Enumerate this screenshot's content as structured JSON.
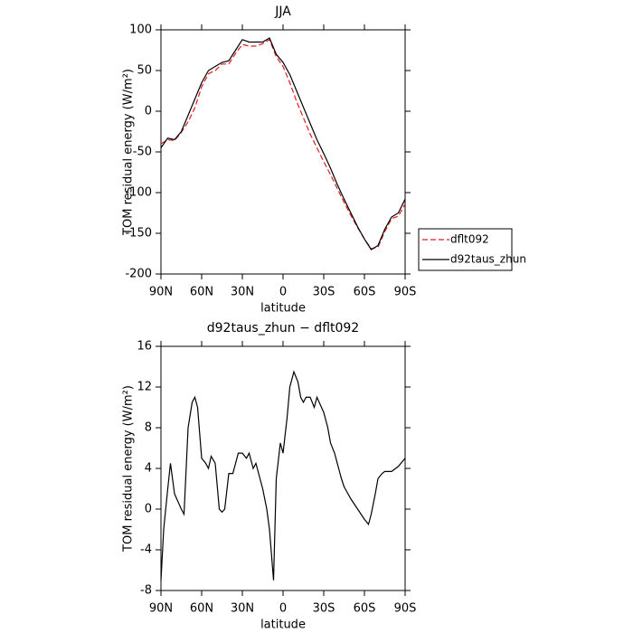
{
  "chart_data": [
    {
      "type": "line",
      "title": "JJA",
      "xlabel": "latitude",
      "ylabel": "TOM residual energy (W/m²)",
      "x": [
        90,
        85,
        80,
        75,
        70,
        65,
        60,
        55,
        50,
        45,
        40,
        35,
        30,
        25,
        20,
        15,
        10,
        5,
        0,
        -5,
        -10,
        -15,
        -20,
        -25,
        -30,
        -35,
        -40,
        -45,
        -50,
        -55,
        -60,
        -65,
        -70,
        -75,
        -80,
        -85,
        -90
      ],
      "xlim": [
        90,
        -90
      ],
      "xticks": [
        {
          "value": 90,
          "label": "90N"
        },
        {
          "value": 60,
          "label": "60N"
        },
        {
          "value": 30,
          "label": "30N"
        },
        0,
        {
          "value": -30,
          "label": "30S"
        },
        {
          "value": -60,
          "label": "60S"
        },
        {
          "value": -90,
          "label": "90S"
        }
      ],
      "ylim": [
        -200,
        100
      ],
      "yticks": [
        -200,
        -150,
        -100,
        -50,
        0,
        50,
        100
      ],
      "legend": "right",
      "series": [
        {
          "name": "dflt092",
          "color": "#e41a1c",
          "style": "dashed",
          "values": [
            -40,
            -35,
            -36,
            -26,
            -13,
            4,
            30,
            46,
            50,
            58,
            58,
            71,
            82,
            80,
            80,
            83,
            88,
            67,
            55,
            35,
            12,
            -8,
            -28,
            -45,
            -62,
            -78,
            -95,
            -112,
            -128,
            -143,
            -157,
            -169,
            -167,
            -148,
            -132,
            -129,
            -114
          ]
        },
        {
          "name": "d92taus_zhun",
          "color": "#000000",
          "style": "solid",
          "values": [
            -45,
            -33,
            -35,
            -25,
            -5,
            15,
            35,
            50,
            55,
            60,
            62,
            75,
            88,
            85,
            85,
            85,
            90,
            70,
            60,
            45,
            25,
            5,
            -15,
            -35,
            -52,
            -70,
            -90,
            -108,
            -125,
            -142,
            -157,
            -170,
            -165,
            -145,
            -130,
            -125,
            -108
          ]
        }
      ]
    },
    {
      "type": "line",
      "title": "d92taus_zhun − dflt092",
      "xlabel": "latitude",
      "ylabel": "TOM residual energy (W/m²)",
      "x": [
        90,
        88,
        85,
        83,
        80,
        75,
        73,
        70,
        67,
        65,
        63,
        60,
        57,
        55,
        53,
        50,
        47,
        45,
        43,
        40,
        37,
        33,
        30,
        27,
        25,
        22,
        20,
        17,
        15,
        12,
        10,
        7,
        5,
        2,
        0,
        -3,
        -5,
        -8,
        -11,
        -13,
        -15,
        -17,
        -20,
        -23,
        -25,
        -30,
        -33,
        -35,
        -38,
        -40,
        -43,
        -45,
        -50,
        -55,
        -60,
        -63,
        -65,
        -68,
        -70,
        -73,
        -75,
        -80,
        -85,
        -90
      ],
      "xlim": [
        90,
        -90
      ],
      "xticks": [
        {
          "value": 90,
          "label": "90N"
        },
        {
          "value": 60,
          "label": "60N"
        },
        {
          "value": 30,
          "label": "30N"
        },
        0,
        {
          "value": -30,
          "label": "30S"
        },
        {
          "value": -60,
          "label": "60S"
        },
        {
          "value": -90,
          "label": "90S"
        }
      ],
      "ylim": [
        -8,
        16
      ],
      "yticks": [
        -8,
        -4,
        0,
        4,
        8,
        12,
        16
      ],
      "color": "#000000",
      "values": [
        -7,
        -2,
        2,
        4.5,
        1.5,
        0,
        -0.5,
        8,
        10.5,
        11,
        10,
        5,
        4.5,
        4,
        5.2,
        4.5,
        0,
        -0.3,
        0,
        3.5,
        3.5,
        5.5,
        5.5,
        5,
        5.5,
        4,
        4.5,
        3,
        2,
        0,
        -2,
        -7,
        3,
        6.5,
        5.5,
        9,
        12,
        13.5,
        12.5,
        11,
        10.5,
        11,
        11,
        10,
        11,
        9.5,
        8,
        6.5,
        5.5,
        4.5,
        3,
        2.2,
        1,
        0,
        -1,
        -1.5,
        -0.5,
        1.5,
        3,
        3.5,
        3.7,
        3.7,
        4.2,
        5
      ]
    }
  ]
}
